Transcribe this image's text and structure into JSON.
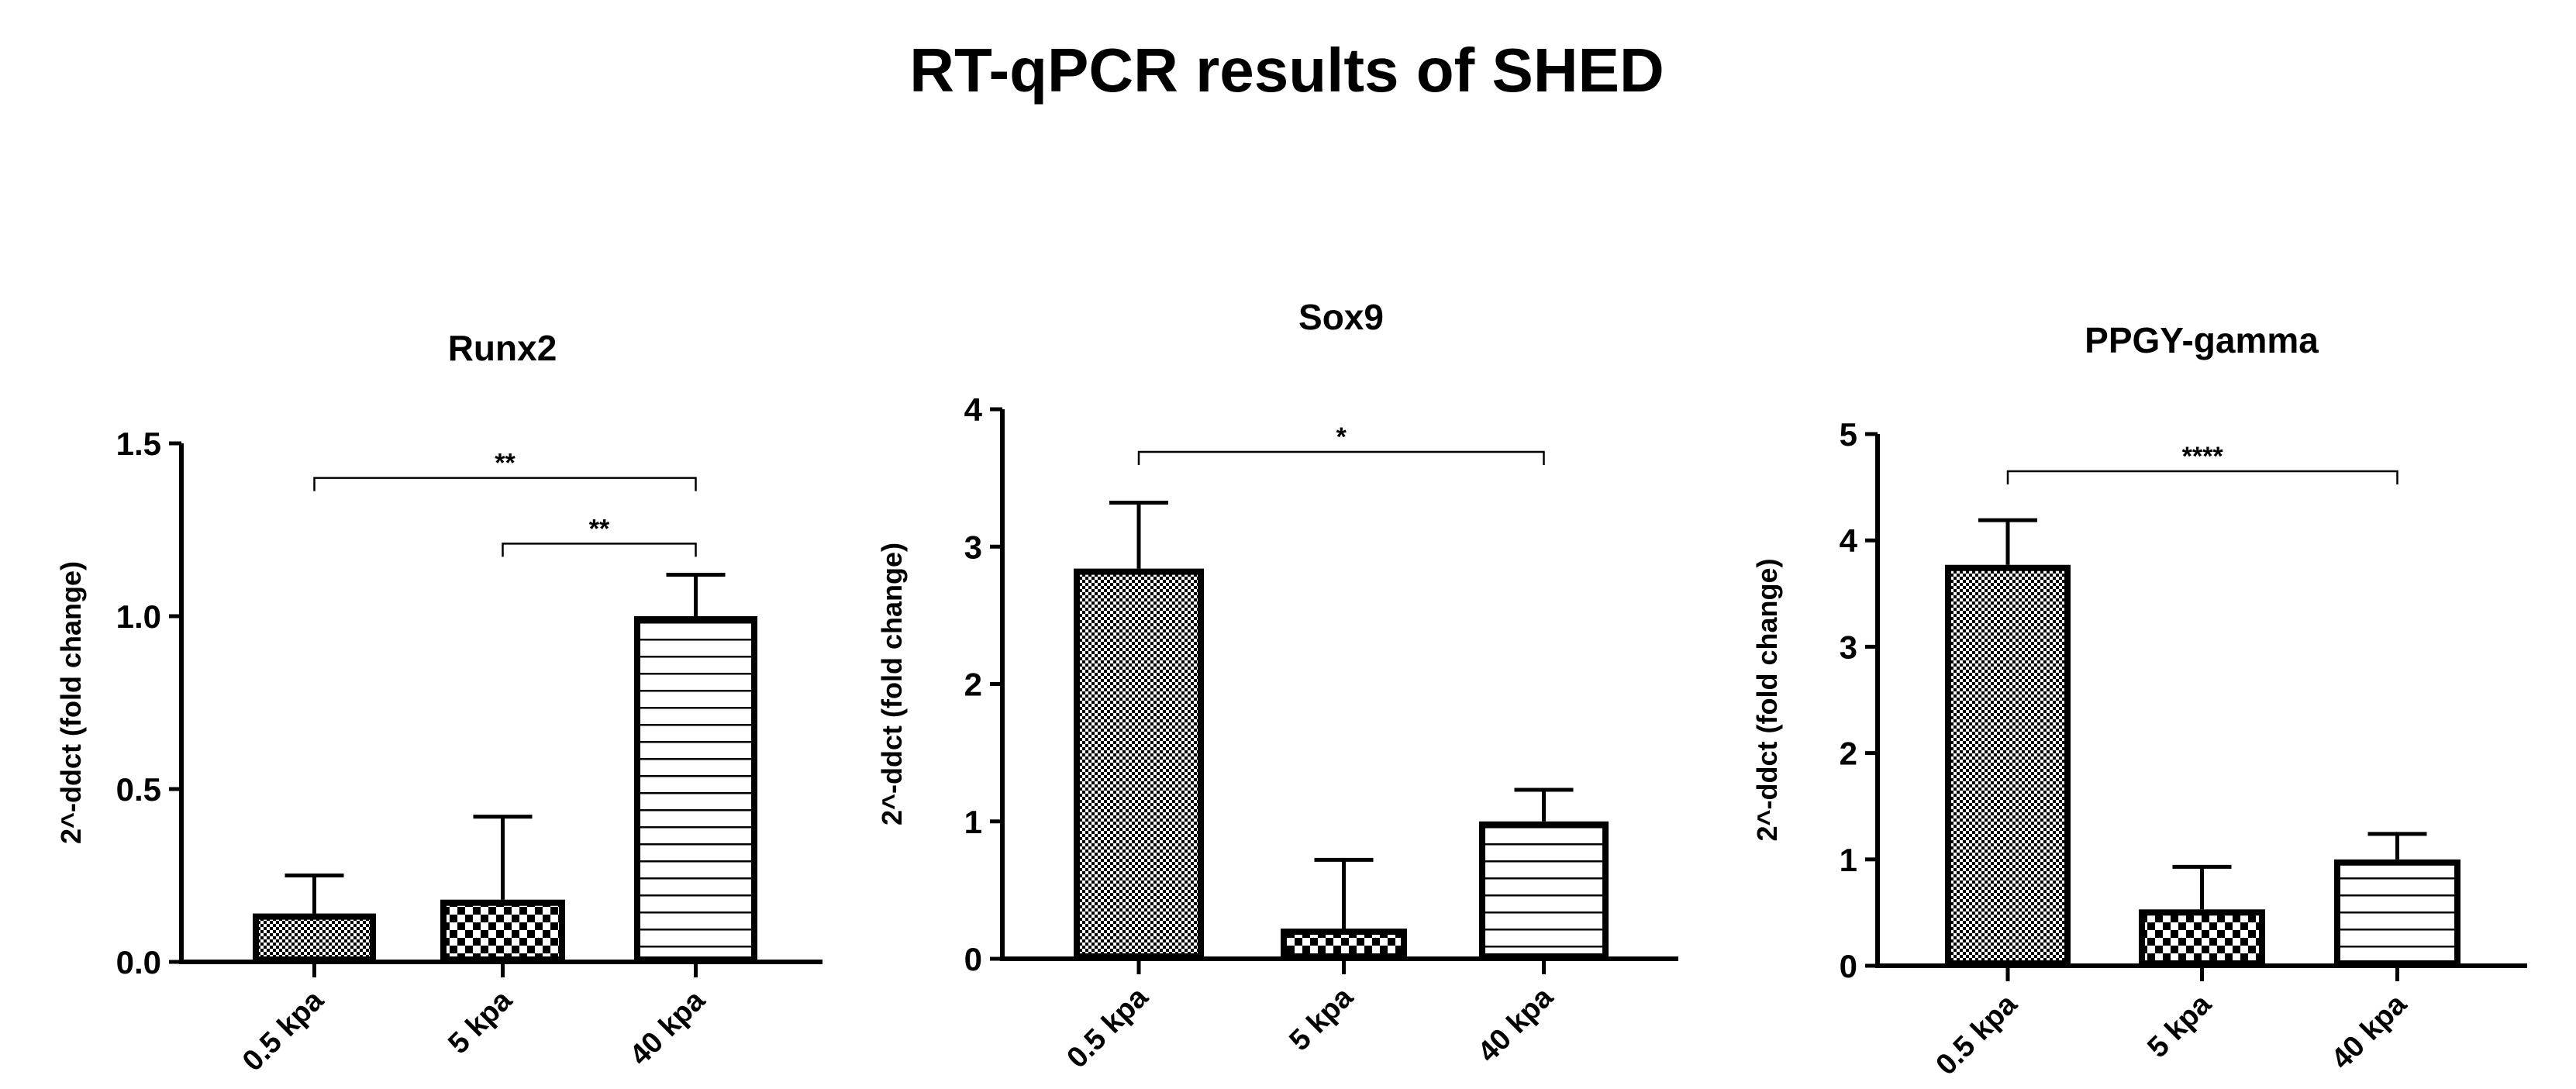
{
  "title": "RT-qPCR results of SHED",
  "chart_data": [
    {
      "type": "bar",
      "title": "Runx2",
      "ylabel": "2^-ddct (fold change)",
      "xlabel": "",
      "categories": [
        "0.5 kpa",
        "5 kpa",
        "40 kpa"
      ],
      "values": [
        0.14,
        0.18,
        1.0
      ],
      "error_upper": [
        0.25,
        0.42,
        1.12
      ],
      "ylim": [
        0,
        1.5
      ],
      "yticks": [
        "0.0",
        "0.5",
        "1.0",
        "1.5"
      ],
      "ytick_values": [
        0,
        0.5,
        1.0,
        1.5
      ],
      "patterns": [
        "fine-checker",
        "coarse-checker",
        "horizontal-lines"
      ],
      "grid": false,
      "significance": [
        {
          "from": 0,
          "to": 2,
          "y": 1.4,
          "label": "**"
        },
        {
          "from": 1,
          "to": 2,
          "y": 1.21,
          "label": "**"
        }
      ]
    },
    {
      "type": "bar",
      "title": "Sox9",
      "ylabel": "2^-ddct (fold change)",
      "xlabel": "",
      "categories": [
        "0.5 kpa",
        "5 kpa",
        "40 kpa"
      ],
      "values": [
        2.84,
        0.22,
        1.0
      ],
      "error_upper": [
        3.32,
        0.72,
        1.23
      ],
      "ylim": [
        0,
        4
      ],
      "yticks": [
        "0",
        "1",
        "2",
        "3",
        "4"
      ],
      "ytick_values": [
        0,
        1,
        2,
        3,
        4
      ],
      "patterns": [
        "fine-checker",
        "coarse-checker",
        "horizontal-lines"
      ],
      "grid": false,
      "significance": [
        {
          "from": 0,
          "to": 2,
          "y": 3.69,
          "label": "*"
        }
      ]
    },
    {
      "type": "bar",
      "title": "PPGY-gamma",
      "ylabel": "2^-ddct (fold change)",
      "xlabel": "",
      "categories": [
        "0.5 kpa",
        "5 kpa",
        "40 kpa"
      ],
      "values": [
        3.77,
        0.53,
        1.0
      ],
      "error_upper": [
        4.19,
        0.93,
        1.24
      ],
      "ylim": [
        0,
        5
      ],
      "yticks": [
        "0",
        "1",
        "2",
        "3",
        "4",
        "5"
      ],
      "ytick_values": [
        0,
        1,
        2,
        3,
        4,
        5
      ],
      "patterns": [
        "fine-checker",
        "coarse-checker",
        "horizontal-lines"
      ],
      "grid": false,
      "significance": [
        {
          "from": 0,
          "to": 2,
          "y": 4.65,
          "label": "****"
        }
      ]
    }
  ]
}
